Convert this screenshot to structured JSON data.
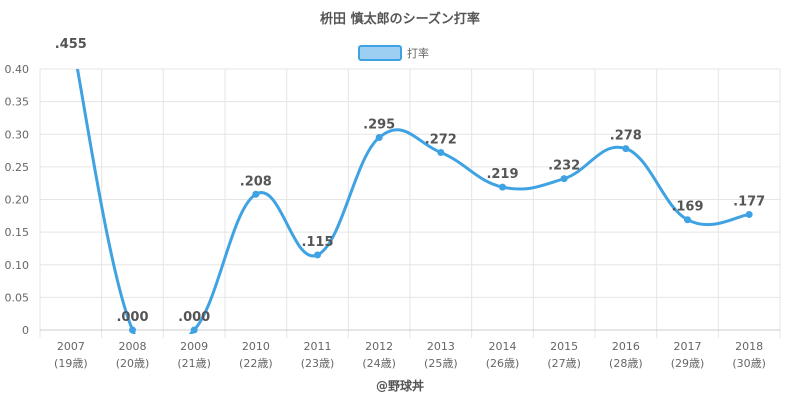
{
  "chart_data": {
    "type": "line",
    "title": "枡田 慎太郎のシーズン打率",
    "legend": {
      "label": "打率",
      "position": "top"
    },
    "categories": [
      {
        "year": "2007",
        "age": "(19歳)"
      },
      {
        "year": "2008",
        "age": "(20歳)"
      },
      {
        "year": "2009",
        "age": "(21歳)"
      },
      {
        "year": "2010",
        "age": "(22歳)"
      },
      {
        "year": "2011",
        "age": "(23歳)"
      },
      {
        "year": "2012",
        "age": "(24歳)"
      },
      {
        "year": "2013",
        "age": "(25歳)"
      },
      {
        "year": "2014",
        "age": "(26歳)"
      },
      {
        "year": "2015",
        "age": "(27歳)"
      },
      {
        "year": "2016",
        "age": "(28歳)"
      },
      {
        "year": "2017",
        "age": "(29歳)"
      },
      {
        "year": "2018",
        "age": "(30歳)"
      }
    ],
    "series": [
      {
        "name": "打率",
        "values": [
          0.455,
          0.0,
          0.0,
          0.208,
          0.115,
          0.295,
          0.272,
          0.219,
          0.232,
          0.278,
          0.169,
          0.177
        ],
        "labels": [
          ".455",
          ".000",
          ".000",
          ".208",
          ".115",
          ".295",
          ".272",
          ".219",
          ".232",
          ".278",
          ".169",
          ".177"
        ]
      }
    ],
    "yticks": [
      "0",
      "0.05",
      "0.10",
      "0.15",
      "0.20",
      "0.25",
      "0.30",
      "0.35",
      "0.40"
    ],
    "ylim": [
      0,
      0.4
    ],
    "grid": true,
    "colors": {
      "line": "#3fa2e3",
      "fill": "#9dcff2",
      "grid": "#e5e5e5",
      "axis": "#cccccc"
    }
  },
  "credit": "@野球丼"
}
